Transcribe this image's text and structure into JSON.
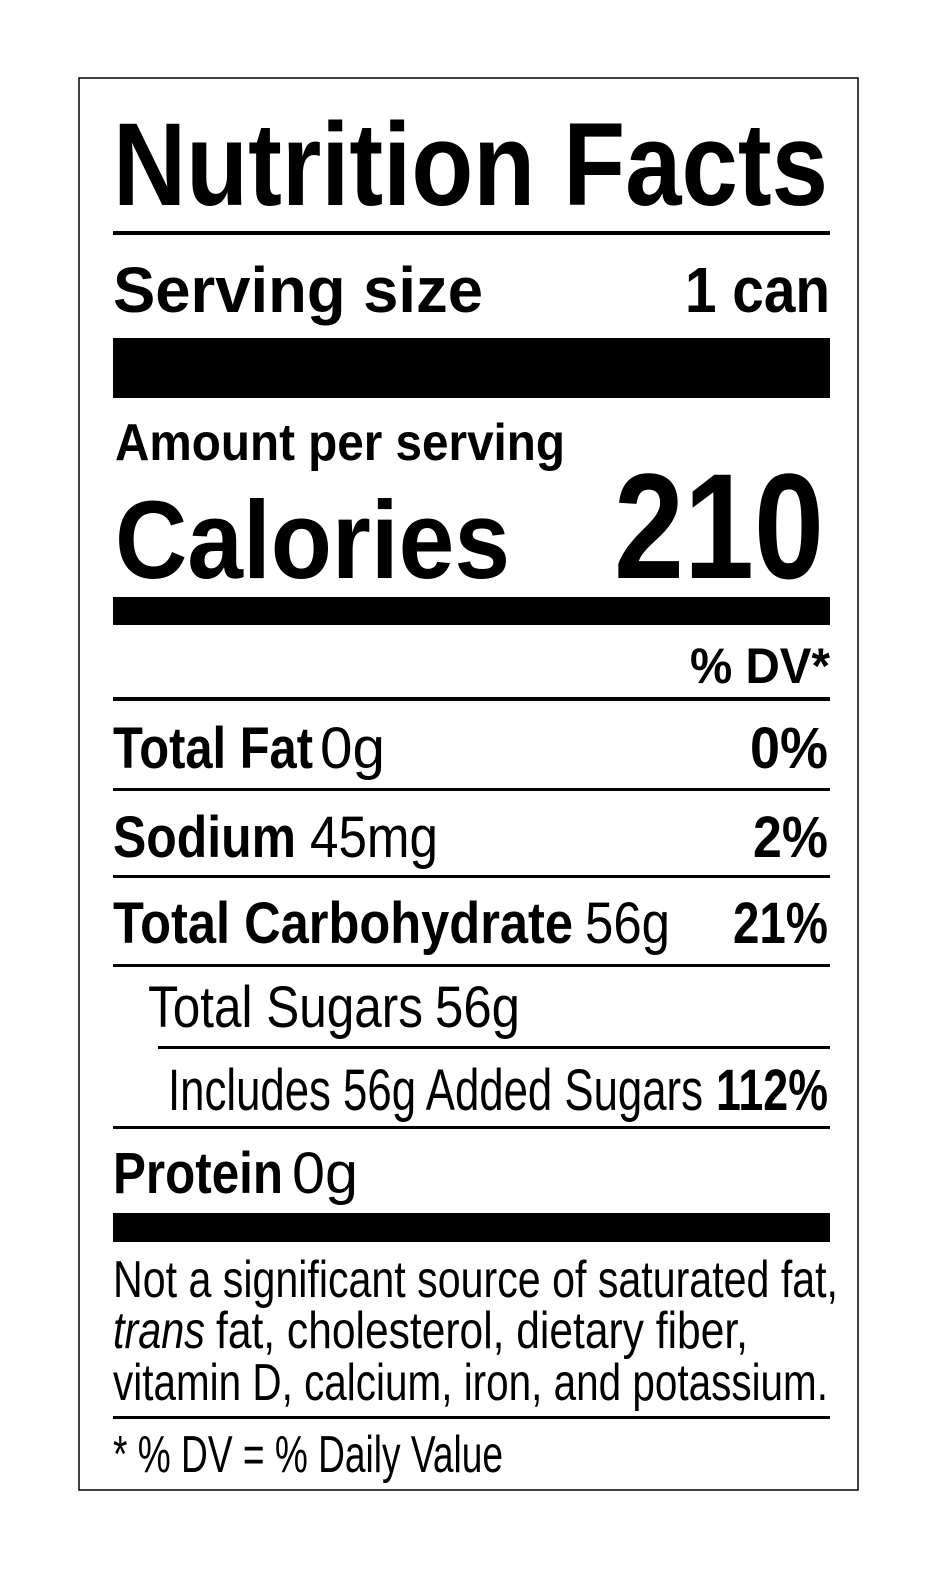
{
  "header": {
    "title": "Nutrition Facts",
    "serving_label": "Serving size",
    "serving_value": "1 can"
  },
  "calories": {
    "amount_label": "Amount per serving",
    "label": "Calories",
    "value": "210"
  },
  "dv_header": "% DV*",
  "nutrients": [
    {
      "name": "Total Fat",
      "amount": "0g",
      "dv": "0%"
    },
    {
      "name": "Sodium",
      "amount": "45mg",
      "dv": "2%"
    },
    {
      "name": "Total Carbohydrate",
      "amount": "56g",
      "dv": "21%"
    },
    {
      "name": "Total Sugars",
      "amount": "56g"
    },
    {
      "name": "Includes 56g Added Sugars",
      "dv": "112%"
    },
    {
      "name": "Protein",
      "amount": "0g"
    }
  ],
  "footnote": {
    "line1": "Not a significant source of saturated fat,",
    "line2_italic": "trans",
    "line2": "fat, cholesterol, dietary fiber,",
    "line3": "vitamin D, calcium, iron, and potassium."
  },
  "legend": "* % DV = % Daily Value"
}
